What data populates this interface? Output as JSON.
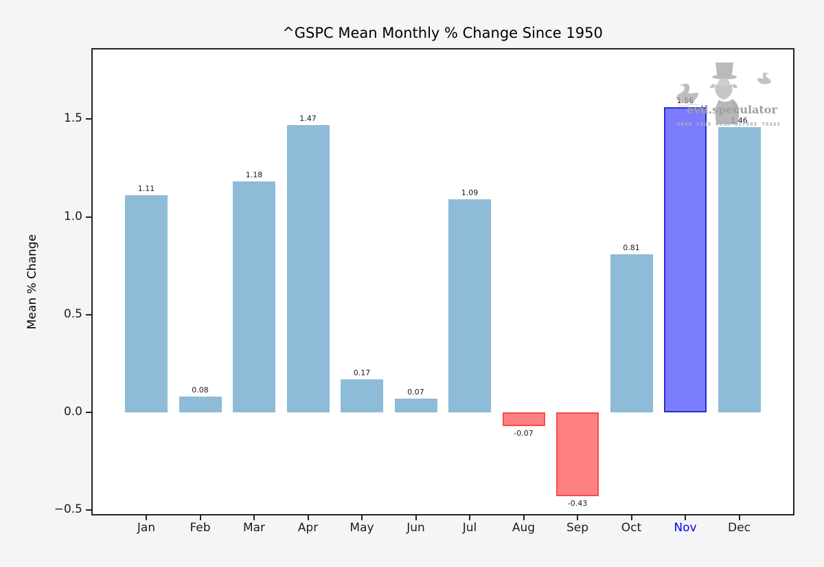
{
  "chart_data": {
    "type": "bar",
    "title": "^GSPC Mean Monthly % Change Since 1950",
    "xlabel": "",
    "ylabel": "Mean % Change",
    "categories": [
      "Jan",
      "Feb",
      "Mar",
      "Apr",
      "May",
      "Jun",
      "Jul",
      "Aug",
      "Sep",
      "Oct",
      "Nov",
      "Dec"
    ],
    "values": [
      1.11,
      0.08,
      1.18,
      1.47,
      0.17,
      0.07,
      1.09,
      -0.07,
      -0.43,
      0.81,
      1.56,
      1.46
    ],
    "bar_labels": [
      "1.11",
      "0.08",
      "1.18",
      "1.47",
      "0.17",
      "0.07",
      "1.09",
      "-0.07",
      "-0.43",
      "0.81",
      "1.56",
      "1.46"
    ],
    "ytick_labels": [
      "1.5",
      "1.0",
      "0.5",
      "0.0",
      "−0.5"
    ],
    "ytick_values": [
      1.5,
      1.0,
      0.5,
      0.0,
      -0.5
    ],
    "ylim": [
      -0.52,
      1.86
    ],
    "grid": false,
    "legend": "none",
    "highlight_month": "Nov",
    "colors": {
      "positive_bar": "#8DBBD8",
      "negative_bar_fill": "#FF8080",
      "negative_bar_edge": "#F64B4B",
      "highlight_bar_fill": "#7C7CFF",
      "highlight_bar_edge": "#2B2BD0",
      "highlight_tick_label": "#0000FF",
      "figure_background": "#F5F5F5",
      "plot_background": "#FFFFFF",
      "axis": "#222222"
    }
  },
  "watermark": {
    "brand": "evil.speculator",
    "tagline": "KNOW YOUR RISK BEFORE TRADE",
    "color": "#A9A9A9"
  }
}
